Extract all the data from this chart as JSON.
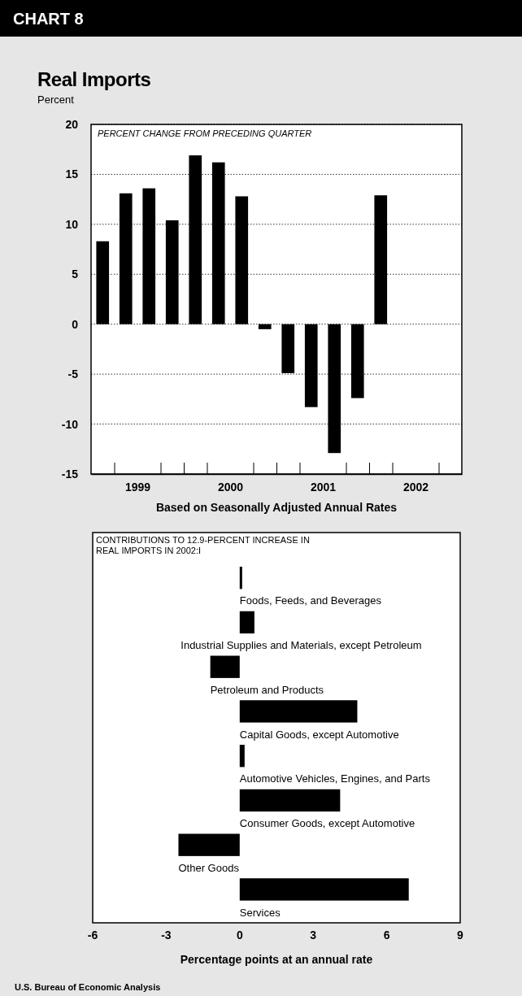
{
  "chart_data": [
    {
      "type": "bar",
      "title": "Real Imports",
      "subtitle": "PERCENT CHANGE FROM PRECEDING QUARTER",
      "ylabel": "Percent",
      "xlabel": "Based on Seasonally Adjusted Annual Rates",
      "annotations": [
        "CHART 8"
      ],
      "color": "#000000",
      "x": [
        1999.125,
        1999.375,
        1999.625,
        1999.875,
        2000.125,
        2000.375,
        2000.625,
        2000.875,
        2001.125,
        2001.375,
        2001.625,
        2001.875,
        2002.125
      ],
      "values": [
        8.3,
        13.1,
        13.6,
        10.4,
        16.9,
        16.2,
        12.8,
        -0.5,
        -4.9,
        -8.3,
        -12.9,
        -7.4,
        12.9
      ],
      "xlim": [
        1999,
        2003
      ],
      "xticks": [
        {
          "value": 1999.25,
          "label": null
        },
        {
          "value": 1999.5,
          "label": "1999"
        },
        {
          "value": 1999.75,
          "label": null
        },
        {
          "value": 2000,
          "label": null
        },
        {
          "value": 2000.25,
          "label": null
        },
        {
          "value": 2000.5,
          "label": "2000"
        },
        {
          "value": 2000.75,
          "label": null
        },
        {
          "value": 2001,
          "label": null
        },
        {
          "value": 2001.25,
          "label": null
        },
        {
          "value": 2001.5,
          "label": "2001"
        },
        {
          "value": 2001.75,
          "label": null
        },
        {
          "value": 2002,
          "label": null
        },
        {
          "value": 2002.25,
          "label": null
        },
        {
          "value": 2002.5,
          "label": "2002"
        },
        {
          "value": 2002.75,
          "label": null
        }
      ],
      "ylim": [
        -15,
        20
      ],
      "yticks": [
        -15,
        -10,
        -5,
        0,
        5,
        10,
        15,
        20
      ],
      "grid": "y"
    },
    {
      "type": "bar",
      "orientation": "horizontal",
      "title": "CONTRIBUTIONS TO 12.9-PERCENT INCREASE IN REAL IMPORTS IN 2002:I",
      "xlabel": "Percentage points at an annual rate",
      "annotations": [
        "U.S. Bureau of Economic Analysis"
      ],
      "color": "#000000",
      "categories": [
        "Foods, Feeds, and Beverages",
        "Industrial Supplies and Materials, except Petroleum",
        "Petroleum and Products",
        "Capital Goods, except Automotive",
        "Automotive Vehicles, Engines, and Parts",
        "Consumer Goods, except Automotive",
        "Other Goods",
        "Services"
      ],
      "values": [
        0.1,
        0.6,
        -1.2,
        4.8,
        0.2,
        4.1,
        -2.5,
        6.9
      ],
      "xlim": [
        -6,
        9
      ],
      "xticks": [
        -6,
        -3,
        0,
        3,
        6,
        9
      ]
    }
  ]
}
